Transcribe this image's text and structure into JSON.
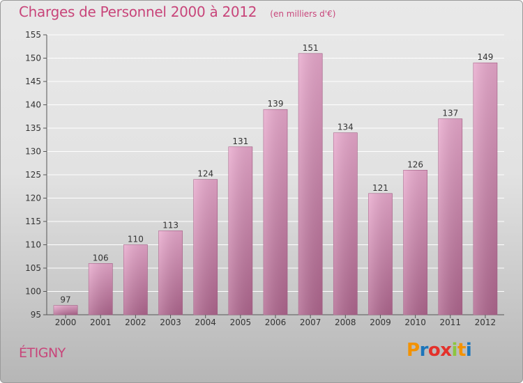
{
  "header": {
    "title": "Charges de Personnel 2000 à 2012",
    "subtitle": "(en milliers d'€)"
  },
  "commune": "ÉTIGNY",
  "logo": {
    "text": "Proxiti",
    "letter_colors": [
      "#f39200",
      "#1b75bb",
      "#e4312b",
      "#e4312b",
      "#8cc63f",
      "#f39200",
      "#1b75bb"
    ]
  },
  "colors": {
    "title": "#c8457a",
    "bar_top": "#e9a9cd",
    "bar_bottom": "#b0678f",
    "grid": "#ffffff",
    "axis": "#555555"
  },
  "chart_data": {
    "type": "bar",
    "categories": [
      "2000",
      "2001",
      "2002",
      "2003",
      "2004",
      "2005",
      "2006",
      "2007",
      "2008",
      "2009",
      "2010",
      "2011",
      "2012"
    ],
    "values": [
      97,
      106,
      110,
      113,
      124,
      131,
      139,
      151,
      134,
      121,
      126,
      137,
      149
    ],
    "ylim": [
      95,
      155
    ],
    "yticks": [
      95,
      100,
      105,
      110,
      115,
      120,
      125,
      130,
      135,
      140,
      145,
      150,
      155
    ],
    "grid": true
  }
}
